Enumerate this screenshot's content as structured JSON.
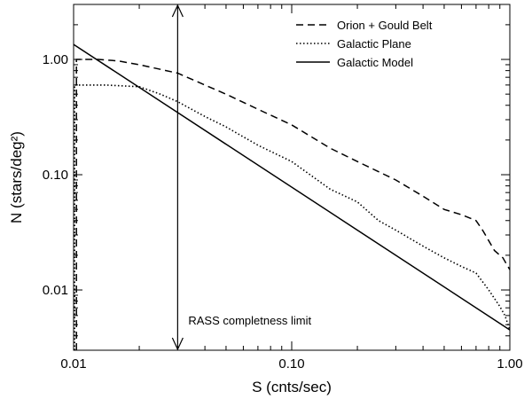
{
  "chart_data": {
    "type": "line",
    "xscale": "log",
    "yscale": "log",
    "xlim": [
      0.01,
      1.0
    ],
    "ylim": [
      0.003,
      3.0
    ],
    "xlabel": "S (cnts/sec)",
    "ylabel": "N (stars/deg²)",
    "xticks": [
      {
        "value": 0.01,
        "label": "0.01"
      },
      {
        "value": 0.1,
        "label": "0.10"
      },
      {
        "value": 1.0,
        "label": "1.00"
      }
    ],
    "yticks": [
      {
        "value": 0.01,
        "label": "0.01"
      },
      {
        "value": 0.1,
        "label": "0.10"
      },
      {
        "value": 1.0,
        "label": "1.00"
      }
    ],
    "legend_position": "top-right",
    "series": [
      {
        "name": "Orion + Gould Belt",
        "style": "dashed",
        "points": [
          [
            0.0103,
            0.003
          ],
          [
            0.0103,
            1.0
          ],
          [
            0.013,
            1.0
          ],
          [
            0.016,
            0.97
          ],
          [
            0.02,
            0.9
          ],
          [
            0.025,
            0.82
          ],
          [
            0.03,
            0.76
          ],
          [
            0.04,
            0.6
          ],
          [
            0.05,
            0.5
          ],
          [
            0.07,
            0.37
          ],
          [
            0.1,
            0.27
          ],
          [
            0.15,
            0.17
          ],
          [
            0.2,
            0.13
          ],
          [
            0.3,
            0.09
          ],
          [
            0.4,
            0.065
          ],
          [
            0.5,
            0.05
          ],
          [
            0.6,
            0.045
          ],
          [
            0.7,
            0.04
          ],
          [
            0.75,
            0.033
          ],
          [
            0.85,
            0.022
          ],
          [
            0.93,
            0.019
          ],
          [
            0.98,
            0.016
          ],
          [
            1.0,
            0.015
          ]
        ]
      },
      {
        "name": "Galactic Plane",
        "style": "dotted",
        "points": [
          [
            0.0101,
            0.003
          ],
          [
            0.0101,
            0.6
          ],
          [
            0.014,
            0.6
          ],
          [
            0.02,
            0.58
          ],
          [
            0.025,
            0.5
          ],
          [
            0.03,
            0.43
          ],
          [
            0.04,
            0.32
          ],
          [
            0.05,
            0.26
          ],
          [
            0.07,
            0.18
          ],
          [
            0.1,
            0.13
          ],
          [
            0.15,
            0.075
          ],
          [
            0.2,
            0.058
          ],
          [
            0.25,
            0.04
          ],
          [
            0.3,
            0.033
          ],
          [
            0.4,
            0.024
          ],
          [
            0.5,
            0.019
          ],
          [
            0.6,
            0.016
          ],
          [
            0.7,
            0.014
          ],
          [
            0.8,
            0.01
          ],
          [
            0.9,
            0.0072
          ],
          [
            0.95,
            0.006
          ],
          [
            1.0,
            0.0045
          ]
        ]
      },
      {
        "name": "Galactic Model",
        "style": "solid",
        "points": [
          [
            0.01,
            1.35
          ],
          [
            1.0,
            0.0045
          ]
        ]
      }
    ],
    "annotations": [
      {
        "type": "double-arrow",
        "x": 0.03,
        "label": "RASS completness limit"
      }
    ]
  }
}
